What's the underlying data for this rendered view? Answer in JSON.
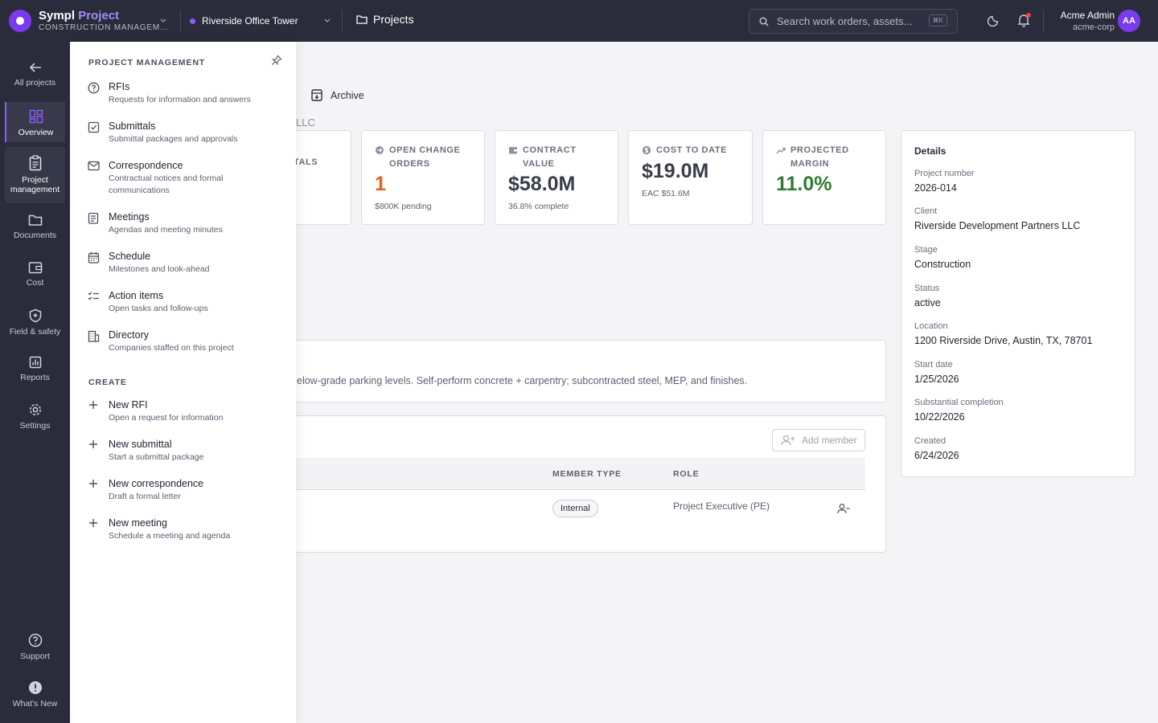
{
  "brand": {
    "name": "Sympl",
    "accent": "Project",
    "subtitle": "CONSTRUCTION MANAGEM..."
  },
  "project_selector": {
    "name": "Riverside Office Tower"
  },
  "breadcrumb": {
    "label": "Projects"
  },
  "search": {
    "placeholder": "Search work orders, assets...",
    "shortcut": "⌘K"
  },
  "user": {
    "name": "Acme Admin",
    "org": "acme-corp",
    "initials": "AA"
  },
  "rail": {
    "back": "All projects",
    "overview": "Overview",
    "project_management": "Project management",
    "documents": "Documents",
    "cost": "Cost",
    "field_safety": "Field & safety",
    "reports": "Reports",
    "settings": "Settings",
    "support": "Support",
    "whats_new": "What's New"
  },
  "flyout": {
    "heading": "PROJECT MANAGEMENT",
    "items": [
      {
        "title": "RFIs",
        "desc": "Requests for information and answers"
      },
      {
        "title": "Submittals",
        "desc": "Submittal packages and approvals"
      },
      {
        "title": "Correspondence",
        "desc": "Contractual notices and formal communications"
      },
      {
        "title": "Meetings",
        "desc": "Agendas and meeting minutes"
      },
      {
        "title": "Schedule",
        "desc": "Milestones and look-ahead"
      },
      {
        "title": "Action items",
        "desc": "Open tasks and follow-ups"
      },
      {
        "title": "Directory",
        "desc": "Companies staffed on this project"
      }
    ],
    "create_heading": "CREATE",
    "create": [
      {
        "title": "New RFI",
        "desc": "Open a request for information"
      },
      {
        "title": "New submittal",
        "desc": "Start a submittal package"
      },
      {
        "title": "New correspondence",
        "desc": "Draft a formal letter"
      },
      {
        "title": "New meeting",
        "desc": "Schedule a meeting and agenda"
      }
    ]
  },
  "main": {
    "archive": "Archive",
    "client_fragment": "LLC",
    "stat_fragment": "TALS",
    "stats": [
      {
        "label": "OPEN CHANGE ORDERS",
        "value": "1",
        "sub": "$800K pending",
        "color": "#e0621a"
      },
      {
        "label": "CONTRACT VALUE",
        "value": "$58.0M",
        "sub": "36.8% complete",
        "color": "#3a3d4a"
      },
      {
        "label": "COST TO DATE",
        "value": "$19.0M",
        "sub": "EAC $51.6M",
        "color": "#3a3d4a"
      },
      {
        "label": "PROJECTED MARGIN",
        "value": "11.0%",
        "sub": "",
        "color": "#2e7d32"
      }
    ],
    "description": "elow-grade parking levels. Self-perform concrete + carpentry; subcontracted steel, MEP, and finishes.",
    "team": {
      "add_member": "Add member",
      "columns": {
        "member_type": "MEMBER TYPE",
        "role": "ROLE"
      },
      "rows": [
        {
          "member_type": "Internal",
          "role": "Project Executive (PE)"
        }
      ]
    }
  },
  "details": {
    "title": "Details",
    "fields": [
      {
        "label": "Project number",
        "value": "2026-014"
      },
      {
        "label": "Client",
        "value": "Riverside Development Partners LLC"
      },
      {
        "label": "Stage",
        "value": "Construction"
      },
      {
        "label": "Status",
        "value": "active"
      },
      {
        "label": "Location",
        "value": "1200 Riverside Drive, Austin, TX, 78701"
      },
      {
        "label": "Start date",
        "value": "1/25/2026"
      },
      {
        "label": "Substantial completion",
        "value": "10/22/2026"
      },
      {
        "label": "Created",
        "value": "6/24/2026"
      }
    ]
  }
}
